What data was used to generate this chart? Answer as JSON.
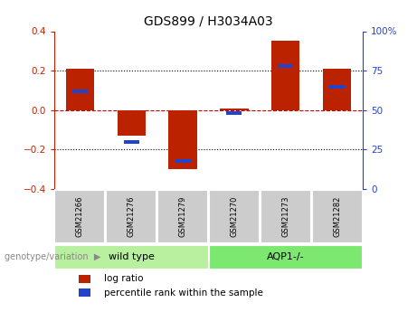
{
  "title": "GDS899 / H3034A03",
  "samples": [
    "GSM21266",
    "GSM21276",
    "GSM21279",
    "GSM21270",
    "GSM21273",
    "GSM21282"
  ],
  "log_ratios": [
    0.21,
    -0.13,
    -0.3,
    0.01,
    0.35,
    0.21
  ],
  "percentile_ranks": [
    62,
    30,
    18,
    48,
    78,
    65
  ],
  "groups": [
    {
      "label": "wild type",
      "indices": [
        0,
        1,
        2
      ],
      "color": "#b8f0a0"
    },
    {
      "label": "AQP1-/-",
      "indices": [
        3,
        4,
        5
      ],
      "color": "#7de870"
    }
  ],
  "ylim_left": [
    -0.4,
    0.4
  ],
  "ylim_right": [
    0,
    100
  ],
  "yticks_left": [
    -0.4,
    -0.2,
    0.0,
    0.2,
    0.4
  ],
  "yticks_right": [
    0,
    25,
    50,
    75,
    100
  ],
  "bar_color_red": "#bb2200",
  "bar_color_blue": "#2244cc",
  "zero_line_color": "#cc0000",
  "bar_width": 0.55,
  "blue_bar_width": 0.3,
  "blue_bar_height": 0.018,
  "sample_bg_color": "#cccccc",
  "legend_red_label": "log ratio",
  "legend_blue_label": "percentile rank within the sample",
  "genotype_label": "genotype/variation"
}
